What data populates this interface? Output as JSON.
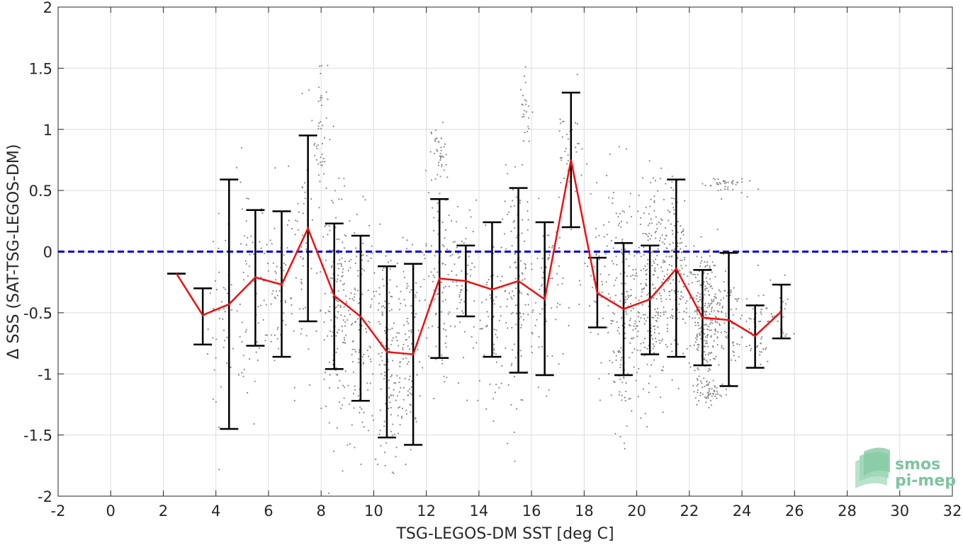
{
  "chart_data": {
    "type": "scatter",
    "title": "",
    "xlabel": "TSG-LEGOS-DM SST [deg C]",
    "ylabel": "Δ SSS (SAT-TSG-LEGOS-DM)",
    "xlim": [
      -2,
      32
    ],
    "ylim": [
      -2,
      2
    ],
    "x_ticks": [
      "-2",
      "0",
      "2",
      "4",
      "6",
      "8",
      "10",
      "12",
      "14",
      "16",
      "18",
      "20",
      "22",
      "24",
      "26",
      "28",
      "30",
      "32"
    ],
    "y_ticks": [
      "2",
      "1.5",
      "1",
      "0.5",
      "0",
      "-0.5",
      "-1",
      "-1.5",
      "-2"
    ],
    "grid": true,
    "reference_line": {
      "y": 0,
      "style": "dashed",
      "color": "#0000dd"
    },
    "series": [
      {
        "kind": "mean_with_errorbars",
        "color": "#ee1111",
        "errorbar_color": "#000000",
        "x": [
          2.5,
          3.5,
          4.5,
          5.5,
          6.5,
          7.5,
          8.5,
          9.5,
          10.5,
          11.5,
          12.5,
          13.5,
          14.5,
          15.5,
          16.5,
          17.5,
          18.5,
          19.5,
          20.5,
          21.5,
          22.5,
          23.5,
          24.5,
          25.5
        ],
        "y": [
          -0.18,
          -0.52,
          -0.43,
          -0.21,
          -0.27,
          0.19,
          -0.36,
          -0.53,
          -0.82,
          -0.84,
          -0.22,
          -0.24,
          -0.31,
          -0.24,
          -0.39,
          0.75,
          -0.34,
          -0.47,
          -0.39,
          -0.14,
          -0.54,
          -0.56,
          -0.69,
          -0.49
        ],
        "lower": [
          -0.18,
          -0.76,
          -1.45,
          -0.77,
          -0.86,
          -0.57,
          -0.96,
          -1.22,
          -1.52,
          -1.58,
          -0.87,
          -0.53,
          -0.86,
          -0.99,
          -1.01,
          0.2,
          -0.62,
          -1.01,
          -0.84,
          -0.86,
          -0.93,
          -1.1,
          -0.95,
          -0.71
        ],
        "upper": [
          -0.18,
          -0.3,
          0.59,
          0.34,
          0.33,
          0.95,
          0.23,
          0.13,
          -0.12,
          -0.1,
          0.43,
          0.05,
          0.24,
          0.52,
          0.24,
          1.3,
          -0.05,
          0.07,
          0.05,
          0.59,
          -0.15,
          -0.01,
          -0.44,
          -0.27
        ]
      },
      {
        "kind": "scatter_cloud",
        "color": "#8a8a8a",
        "clusters": [
          {
            "x": 4.2,
            "y": -0.6,
            "sx": 0.25,
            "sy": 0.45,
            "n": 40
          },
          {
            "x": 5.2,
            "y": -0.4,
            "sx": 0.35,
            "sy": 0.5,
            "n": 60
          },
          {
            "x": 6.2,
            "y": -0.3,
            "sx": 0.35,
            "sy": 0.35,
            "n": 55
          },
          {
            "x": 7.3,
            "y": 0.05,
            "sx": 0.3,
            "sy": 0.55,
            "n": 60
          },
          {
            "x": 8.0,
            "y": 1.0,
            "sx": 0.12,
            "sy": 0.3,
            "n": 45
          },
          {
            "x": 8.6,
            "y": -0.45,
            "sx": 0.3,
            "sy": 0.45,
            "n": 150
          },
          {
            "x": 9.5,
            "y": -0.65,
            "sx": 0.3,
            "sy": 0.45,
            "n": 110
          },
          {
            "x": 10.5,
            "y": -0.9,
            "sx": 0.3,
            "sy": 0.5,
            "n": 130
          },
          {
            "x": 11.3,
            "y": -0.75,
            "sx": 0.3,
            "sy": 0.45,
            "n": 100
          },
          {
            "x": 12.4,
            "y": -0.2,
            "sx": 0.25,
            "sy": 0.45,
            "n": 90
          },
          {
            "x": 12.5,
            "y": 0.8,
            "sx": 0.15,
            "sy": 0.12,
            "n": 35
          },
          {
            "x": 13.4,
            "y": -0.3,
            "sx": 0.3,
            "sy": 0.35,
            "n": 60
          },
          {
            "x": 14.5,
            "y": -0.55,
            "sx": 0.35,
            "sy": 0.35,
            "n": 60
          },
          {
            "x": 15.5,
            "y": -0.3,
            "sx": 0.3,
            "sy": 0.45,
            "n": 120
          },
          {
            "x": 15.8,
            "y": 1.15,
            "sx": 0.12,
            "sy": 0.15,
            "n": 25
          },
          {
            "x": 16.6,
            "y": -0.35,
            "sx": 0.3,
            "sy": 0.35,
            "n": 70
          },
          {
            "x": 17.4,
            "y": 0.8,
            "sx": 0.3,
            "sy": 0.25,
            "n": 40
          },
          {
            "x": 18.6,
            "y": -0.25,
            "sx": 0.3,
            "sy": 0.3,
            "n": 50
          },
          {
            "x": 19.5,
            "y": -0.45,
            "sx": 0.35,
            "sy": 0.5,
            "n": 180
          },
          {
            "x": 20.5,
            "y": -0.35,
            "sx": 0.3,
            "sy": 0.45,
            "n": 200
          },
          {
            "x": 21.5,
            "y": -0.1,
            "sx": 0.3,
            "sy": 0.4,
            "n": 160
          },
          {
            "x": 22.6,
            "y": -0.5,
            "sx": 0.3,
            "sy": 0.25,
            "n": 260
          },
          {
            "x": 22.7,
            "y": -1.15,
            "sx": 0.25,
            "sy": 0.05,
            "n": 60
          },
          {
            "x": 23.3,
            "y": 0.55,
            "sx": 0.4,
            "sy": 0.04,
            "n": 40
          },
          {
            "x": 23.5,
            "y": -0.55,
            "sx": 0.3,
            "sy": 0.25,
            "n": 60
          },
          {
            "x": 24.5,
            "y": -0.65,
            "sx": 0.3,
            "sy": 0.15,
            "n": 50
          },
          {
            "x": 25.5,
            "y": -0.55,
            "sx": 0.2,
            "sy": 0.15,
            "n": 25
          }
        ]
      }
    ]
  },
  "logo": {
    "line1": "smos",
    "line2": "pi-mep",
    "color": "#7fc4a2"
  }
}
